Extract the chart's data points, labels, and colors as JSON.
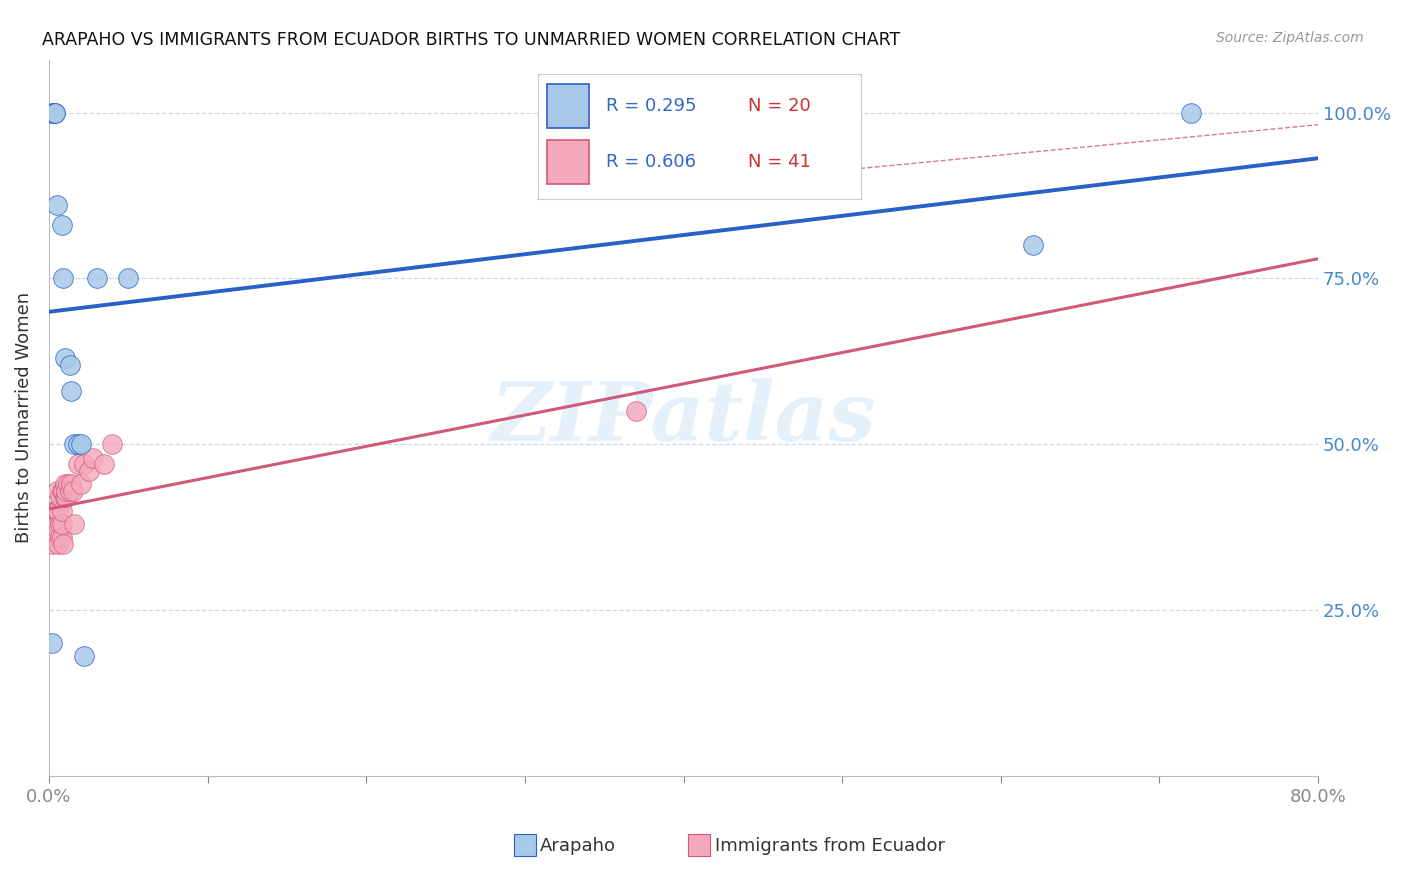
{
  "title": "ARAPAHO VS IMMIGRANTS FROM ECUADOR BIRTHS TO UNMARRIED WOMEN CORRELATION CHART",
  "source": "Source: ZipAtlas.com",
  "ylabel": "Births to Unmarried Women",
  "xlim": [
    0.0,
    0.8
  ],
  "ylim": [
    0.0,
    1.08
  ],
  "color_arapaho": "#a8c8e8",
  "color_ecuador": "#f4a8bc",
  "color_line_arapaho": "#2860c8",
  "color_line_ecuador": "#d05878",
  "grid_color": "#c8d8e8",
  "R_arapaho": 0.295,
  "N_arapaho": 20,
  "R_ecuador": 0.606,
  "N_ecuador": 41,
  "watermark": "ZIPatlas",
  "legend_text_blue": "#3366cc",
  "legend_text_red": "#cc3333",
  "arapaho_x": [
    0.002,
    0.003,
    0.003,
    0.004,
    0.004,
    0.005,
    0.008,
    0.009,
    0.01,
    0.013,
    0.014,
    0.016,
    0.018,
    0.02,
    0.022,
    0.03,
    0.05,
    0.62,
    0.72,
    0.002
  ],
  "arapaho_y": [
    1.0,
    1.0,
    1.0,
    1.0,
    1.0,
    0.86,
    0.83,
    0.75,
    0.63,
    0.62,
    0.58,
    0.5,
    0.5,
    0.5,
    0.18,
    0.75,
    0.75,
    0.8,
    1.0,
    0.2
  ],
  "ecuador_x": [
    0.001,
    0.002,
    0.002,
    0.003,
    0.003,
    0.003,
    0.004,
    0.004,
    0.005,
    0.005,
    0.005,
    0.005,
    0.006,
    0.006,
    0.006,
    0.007,
    0.007,
    0.007,
    0.008,
    0.008,
    0.008,
    0.008,
    0.009,
    0.009,
    0.01,
    0.01,
    0.011,
    0.011,
    0.012,
    0.013,
    0.014,
    0.015,
    0.016,
    0.018,
    0.02,
    0.022,
    0.025,
    0.028,
    0.035,
    0.04,
    0.37
  ],
  "ecuador_y": [
    0.38,
    0.35,
    0.37,
    0.36,
    0.38,
    0.4,
    0.37,
    0.4,
    0.36,
    0.38,
    0.4,
    0.43,
    0.35,
    0.37,
    0.4,
    0.36,
    0.38,
    0.42,
    0.36,
    0.38,
    0.4,
    0.43,
    0.35,
    0.43,
    0.42,
    0.44,
    0.42,
    0.43,
    0.44,
    0.43,
    0.44,
    0.43,
    0.38,
    0.47,
    0.44,
    0.47,
    0.46,
    0.48,
    0.47,
    0.5,
    0.55
  ],
  "ytick_vals": [
    0.25,
    0.5,
    0.75,
    1.0
  ],
  "ytick_labels": [
    "25.0%",
    "50.0%",
    "75.0%",
    "100.0%"
  ],
  "xtick_positions": [
    0.0,
    0.1,
    0.2,
    0.3,
    0.4,
    0.5,
    0.6,
    0.7,
    0.8
  ],
  "xtick_labels": [
    "0.0%",
    "",
    "",
    "",
    "",
    "",
    "",
    "",
    "80.0%"
  ]
}
